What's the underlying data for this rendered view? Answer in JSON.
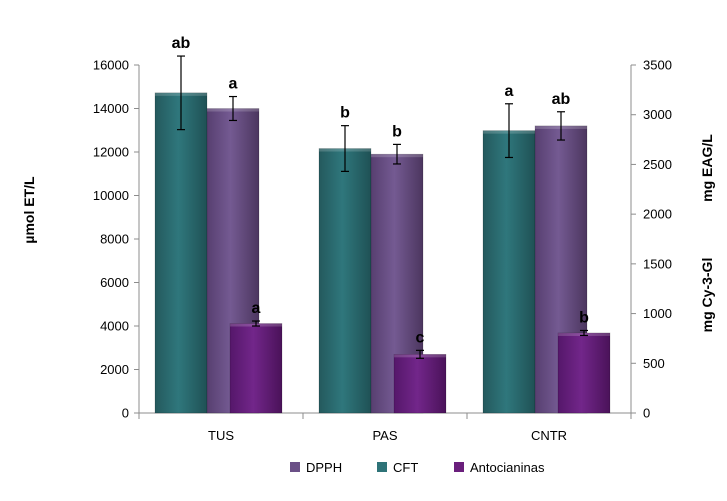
{
  "chart_data": {
    "type": "bar",
    "categories": [
      "TUS",
      "PAS",
      "CNTR"
    ],
    "y_left": {
      "label": "µmol ET/L",
      "lim": [
        0,
        16000
      ],
      "ticks": [
        0,
        2000,
        4000,
        6000,
        8000,
        10000,
        12000,
        14000,
        16000
      ]
    },
    "y_right": {
      "label_top": "mg EAG/L",
      "label_bottom": "mg Cy-3-Gl",
      "lim": [
        0,
        3500
      ],
      "ticks": [
        0,
        500,
        1000,
        1500,
        2000,
        2500,
        3000,
        3500
      ]
    },
    "series": [
      {
        "name": "CFT",
        "axis": "right",
        "color": "#2e7378",
        "values": [
          3220,
          2660,
          2840
        ],
        "errors": [
          370,
          230,
          270
        ],
        "labels": [
          "ab",
          "b",
          "a"
        ]
      },
      {
        "name": "DPPH",
        "axis": "left",
        "color": "#6b5087",
        "values": [
          14000,
          11900,
          13200
        ],
        "errors": [
          550,
          450,
          650
        ],
        "labels": [
          "a",
          "b",
          "ab"
        ]
      },
      {
        "name": "Antocianinas",
        "axis": "right",
        "color": "#6a1f7c",
        "values": [
          900,
          590,
          805
        ],
        "errors": [
          25,
          40,
          25
        ],
        "labels": [
          "a",
          "c",
          "b"
        ]
      }
    ],
    "legend": {
      "placement": "bottom",
      "order": [
        "DPPH",
        "CFT",
        "Antocianinas"
      ]
    }
  }
}
